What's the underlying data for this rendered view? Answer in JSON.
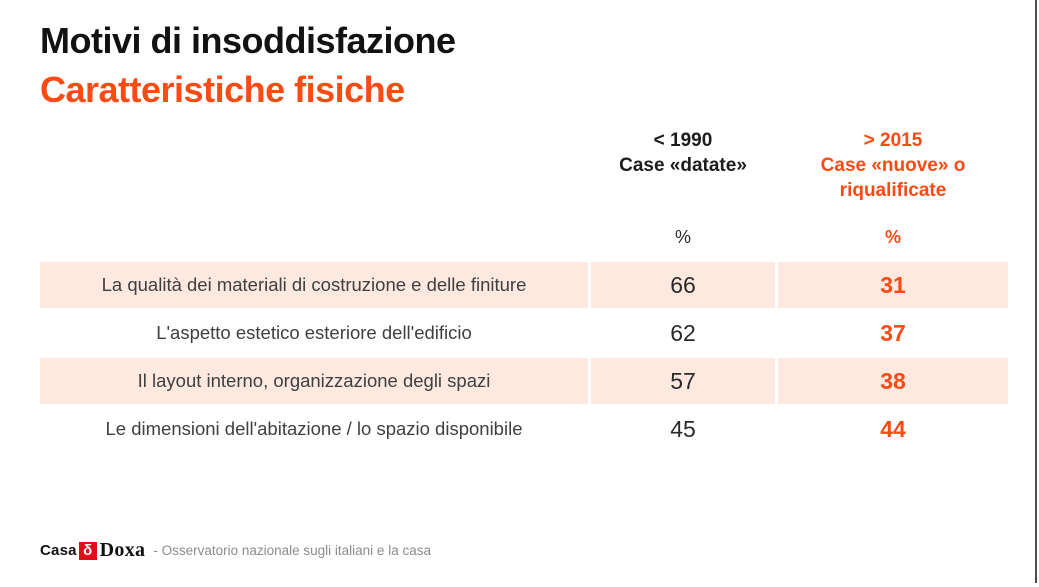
{
  "slide": {
    "title": "Motivi di insoddisfazione",
    "subtitle": "Caratteristiche fisiche"
  },
  "table": {
    "col_old": {
      "period": "< 1990",
      "name": "Case «datate»",
      "unit": "%"
    },
    "col_new": {
      "period": "> 2015",
      "name": "Case «nuove» o riqualificate",
      "unit": "%"
    },
    "rows": [
      {
        "label": "La qualità dei materiali di costruzione e delle finiture",
        "old": "66",
        "new": "31"
      },
      {
        "label": "L'aspetto estetico esteriore  dell'edificio",
        "old": "62",
        "new": "37"
      },
      {
        "label": "Il layout interno, organizzazione degli spazi",
        "old": "57",
        "new": "38"
      },
      {
        "label": "Le dimensioni dell'abitazione / lo spazio disponibile",
        "old": "45",
        "new": "44"
      }
    ]
  },
  "footer": {
    "brand_casa": "Casa",
    "logo_glyph": "δ",
    "brand_doxa": "Doxa",
    "tagline": "- Osservatorio nazionale sugli italiani e la casa"
  },
  "colors": {
    "accent_orange": "#fa4b14",
    "row_peach": "#fde9e0",
    "logo_red": "#e30b17",
    "edge_line_gray": "#4d4d4d"
  },
  "chart_data": {
    "type": "table",
    "title": "Motivi di insoddisfazione — Caratteristiche fisiche",
    "categories": [
      "La qualità dei materiali di costruzione e delle finiture",
      "L'aspetto estetico esteriore  dell'edificio",
      "Il layout interno, organizzazione degli spazi",
      "Le dimensioni dell'abitazione / lo spazio disponibile"
    ],
    "series": [
      {
        "name": "< 1990 Case «datate»",
        "unit": "%",
        "values": [
          66,
          62,
          57,
          45
        ]
      },
      {
        "name": "> 2015 Case «nuove» o riqualificate",
        "unit": "%",
        "values": [
          31,
          37,
          38,
          44
        ]
      }
    ]
  }
}
